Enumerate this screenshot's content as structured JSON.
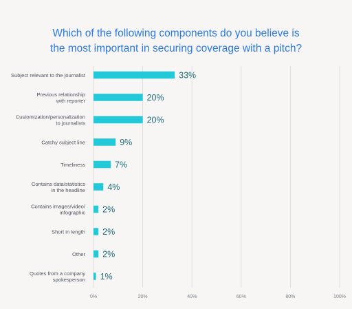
{
  "title_lines": [
    "Which of the following components do you believe is",
    "the most important in securing coverage with a pitch?"
  ],
  "colors": {
    "bar": "#22c9d8",
    "title": "#2a7ae2",
    "grid": "#d9d9d9",
    "label": "#4f5361",
    "value": "#1e6b7a"
  },
  "chart_data": {
    "type": "bar",
    "orientation": "horizontal",
    "title": "Which of the following components do you believe is the most important in securing coverage with a pitch?",
    "categories": [
      [
        "Subject relevant to the journalist"
      ],
      [
        "Previous relationship",
        "with reporter"
      ],
      [
        "Customization/personalization",
        "to journalists"
      ],
      [
        "Catchy subject line"
      ],
      [
        "Timeliness"
      ],
      [
        "Contains data/statistics",
        "in the headline"
      ],
      [
        "Contains images/video/",
        "infographic"
      ],
      [
        "Short in length"
      ],
      [
        "Other"
      ],
      [
        "Quotes from a company",
        "spokesperson"
      ]
    ],
    "values": [
      33,
      20,
      20,
      9,
      7,
      4,
      2,
      2,
      2,
      1
    ],
    "value_labels": [
      "33%",
      "20%",
      "20%",
      "9%",
      "7%",
      "4%",
      "2%",
      "2%",
      "2%",
      "1%"
    ],
    "xticks": [
      0,
      20,
      40,
      60,
      80,
      100
    ],
    "xtick_labels": [
      "0%",
      "20%",
      "40%",
      "60%",
      "80%",
      "100%"
    ],
    "xlim": [
      0,
      100
    ],
    "grid": "vertical"
  }
}
